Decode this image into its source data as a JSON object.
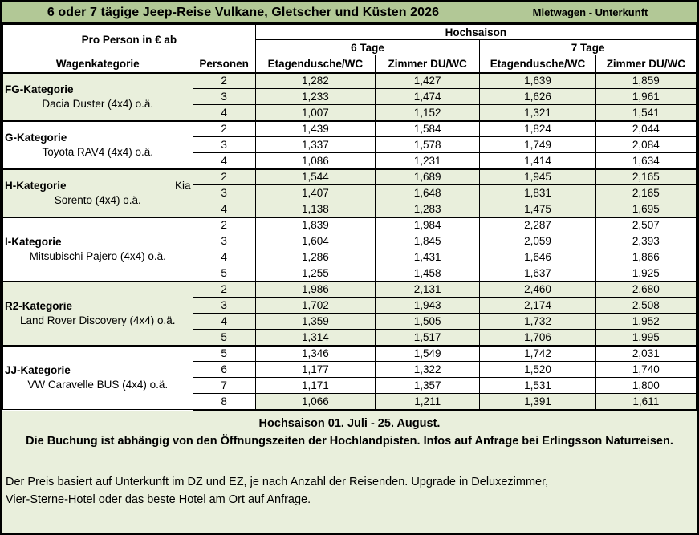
{
  "title": "6 oder 7 tägige Jeep-Reise Vulkane, Gletscher und Küsten 2026",
  "subtitle_right": "Mietwagen - Unterkunft",
  "header": {
    "pro_person": "Pro Person in € ab",
    "season": "Hochsaison",
    "day_groups": [
      "6 Tage",
      "7 Tage"
    ],
    "col_wagen": "Wagenkategorie",
    "col_personen": "Personen",
    "col_labels": [
      "Etagendusche/WC",
      "Zimmer DU/WC",
      "Etagendusche/WC",
      "Zimmer DU/WC"
    ]
  },
  "categories": [
    {
      "name": "FG-Kategorie",
      "name_right": "",
      "vehicle": "Dacia Duster (4x4) o.ä.",
      "shaded": true,
      "rows": [
        {
          "personen": "2",
          "values": [
            "1,282",
            "1,427",
            "1,639",
            "1,859"
          ]
        },
        {
          "personen": "3",
          "values": [
            "1,233",
            "1,474",
            "1,626",
            "1,961"
          ]
        },
        {
          "personen": "4",
          "values": [
            "1,007",
            "1,152",
            "1,321",
            "1,541"
          ]
        }
      ]
    },
    {
      "name": "G-Kategorie",
      "name_right": "",
      "vehicle": "Toyota RAV4 (4x4) o.ä.",
      "shaded": false,
      "rows": [
        {
          "personen": "2",
          "values": [
            "1,439",
            "1,584",
            "1,824",
            "2,044"
          ]
        },
        {
          "personen": "3",
          "values": [
            "1,337",
            "1,578",
            "1,749",
            "2,084"
          ]
        },
        {
          "personen": "4",
          "values": [
            "1,086",
            "1,231",
            "1,414",
            "1,634"
          ]
        }
      ]
    },
    {
      "name": "H-Kategorie",
      "name_right": "Kia",
      "vehicle": "Sorento (4x4) o.ä.",
      "shaded": true,
      "rows": [
        {
          "personen": "2",
          "values": [
            "1,544",
            "1,689",
            "1,945",
            "2,165"
          ]
        },
        {
          "personen": "3",
          "values": [
            "1,407",
            "1,648",
            "1,831",
            "2,165"
          ]
        },
        {
          "personen": "4",
          "values": [
            "1,138",
            "1,283",
            "1,475",
            "1,695"
          ]
        }
      ]
    },
    {
      "name": "I-Kategorie",
      "name_right": "",
      "vehicle": "Mitsubischi Pajero (4x4) o.ä.",
      "shaded": false,
      "rows": [
        {
          "personen": "2",
          "values": [
            "1,839",
            "1,984",
            "2,287",
            "2,507"
          ]
        },
        {
          "personen": "3",
          "values": [
            "1,604",
            "1,845",
            "2,059",
            "2,393"
          ]
        },
        {
          "personen": "4",
          "values": [
            "1,286",
            "1,431",
            "1,646",
            "1,866"
          ]
        },
        {
          "personen": "5",
          "values": [
            "1,255",
            "1,458",
            "1,637",
            "1,925"
          ]
        }
      ]
    },
    {
      "name": "R2-Kategorie",
      "name_right": "",
      "vehicle": "Land Rover Discovery (4x4) o.ä.",
      "shaded": true,
      "rows": [
        {
          "personen": "2",
          "values": [
            "1,986",
            "2,131",
            "2,460",
            "2,680"
          ]
        },
        {
          "personen": "3",
          "values": [
            "1,702",
            "1,943",
            "2,174",
            "2,508"
          ]
        },
        {
          "personen": "4",
          "values": [
            "1,359",
            "1,505",
            "1,732",
            "1,952"
          ]
        },
        {
          "personen": "5",
          "values": [
            "1,314",
            "1,517",
            "1,706",
            "1,995"
          ]
        }
      ]
    },
    {
      "name": "JJ-Kategorie",
      "name_right": "",
      "vehicle": "VW Caravelle BUS (4x4) o.ä.",
      "shaded": false,
      "rows": [
        {
          "personen": "5",
          "values": [
            "1,346",
            "1,549",
            "1,742",
            "2,031"
          ]
        },
        {
          "personen": "6",
          "values": [
            "1,177",
            "1,322",
            "1,520",
            "1,740"
          ]
        },
        {
          "personen": "7",
          "values": [
            "1,171",
            "1,357",
            "1,531",
            "1,800"
          ]
        },
        {
          "personen": "8",
          "values": [
            "1,066",
            "1,211",
            "1,391",
            "1,611"
          ],
          "values_shaded": true
        }
      ]
    }
  ],
  "footer": {
    "line1": "Hochsaison 01. Juli - 25. August.",
    "line2": "Die Buchung ist  abhängig von den Öffnungszeiten der Hochlandpisten. Infos auf Anfrage bei Erlingsson Naturreisen.",
    "note_line1": "Der Preis basiert auf Unterkunft im DZ und EZ, je nach Anzahl der Reisenden. Upgrade in Deluxezimmer,",
    "note_line2": "Vier-Sterne-Hotel oder das beste Hotel am Ort auf Anfrage."
  },
  "colors": {
    "title_bg": "#b2c896",
    "shaded_bg": "#e9efdc",
    "border": "#000000"
  }
}
